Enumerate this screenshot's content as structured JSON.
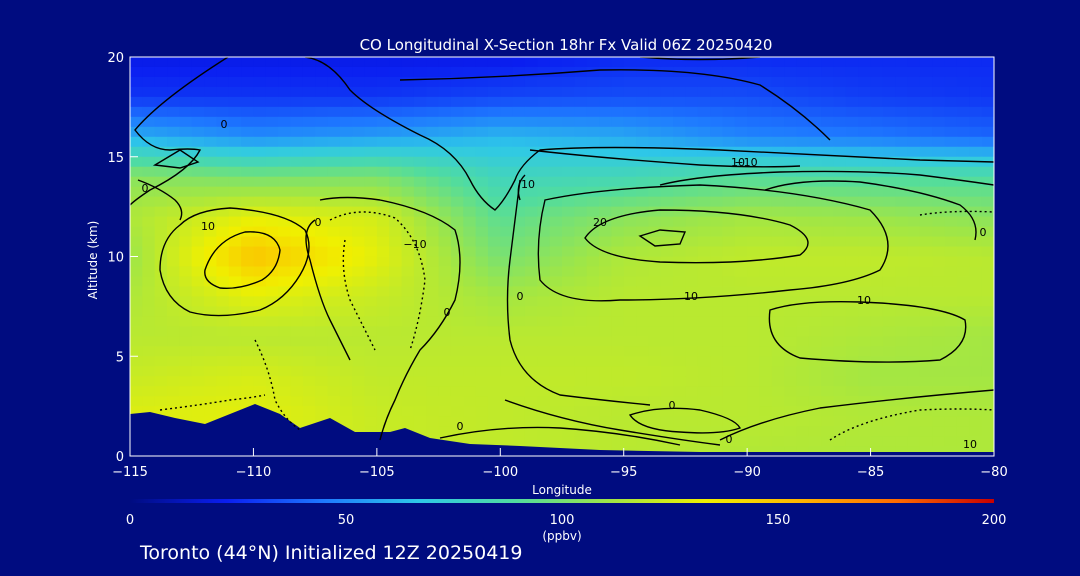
{
  "chart_data": {
    "type": "heatmap",
    "title": "CO Longitudinal X-Section 18hr  Fx Valid 06Z 20250420",
    "xlabel": "Longitude",
    "ylabel": "Altitude (km)",
    "xlim": [
      -115,
      -80
    ],
    "ylim": [
      0,
      20
    ],
    "x_ticks": [
      "−115",
      "−110",
      "−105",
      "−100",
      "−95",
      "−90",
      "−85",
      "−80"
    ],
    "y_ticks": [
      "0",
      "5",
      "10",
      "15",
      "20"
    ],
    "colorbar": {
      "label": "(ppbv)",
      "range": [
        0,
        200
      ],
      "ticks": [
        "0",
        "50",
        "100",
        "150",
        "200"
      ],
      "colors": [
        "#000c80",
        "#0a1ef0",
        "#1e78ff",
        "#2ec8e8",
        "#50dca0",
        "#a0e646",
        "#f0f000",
        "#ffb400",
        "#ff6a00",
        "#c80000"
      ]
    },
    "altitudes_km": [
      20,
      18,
      16,
      14,
      12,
      10,
      8,
      6,
      4,
      2,
      0
    ],
    "longitudes": [
      -115,
      -110,
      -105,
      -100,
      -95,
      -90,
      -85,
      -80
    ],
    "co_ppbv": [
      [
        20,
        20,
        20,
        20,
        25,
        25,
        25,
        25
      ],
      [
        28,
        28,
        28,
        32,
        34,
        34,
        30,
        28
      ],
      [
        60,
        50,
        55,
        62,
        58,
        48,
        45,
        40
      ],
      [
        105,
        100,
        102,
        80,
        82,
        90,
        88,
        88
      ],
      [
        115,
        130,
        125,
        92,
        105,
        112,
        110,
        105
      ],
      [
        110,
        150,
        130,
        100,
        115,
        120,
        120,
        118
      ],
      [
        115,
        130,
        122,
        112,
        118,
        118,
        118,
        118
      ],
      [
        118,
        118,
        118,
        118,
        118,
        118,
        115,
        112
      ],
      [
        122,
        126,
        120,
        120,
        120,
        118,
        112,
        112
      ],
      [
        128,
        130,
        122,
        120,
        118,
        118,
        116,
        115
      ],
      [
        125,
        125,
        122,
        120,
        118,
        116,
        115,
        115
      ]
    ],
    "contour_labels": [
      "0",
      "0",
      "10",
      "0",
      "−10",
      "0",
      "10",
      "−10",
      "10",
      "20",
      "0",
      "10",
      "0",
      "0",
      "0",
      "10",
      "10",
      "0"
    ],
    "footer": "Toronto (44°N) Initialized 12Z 20250419"
  }
}
